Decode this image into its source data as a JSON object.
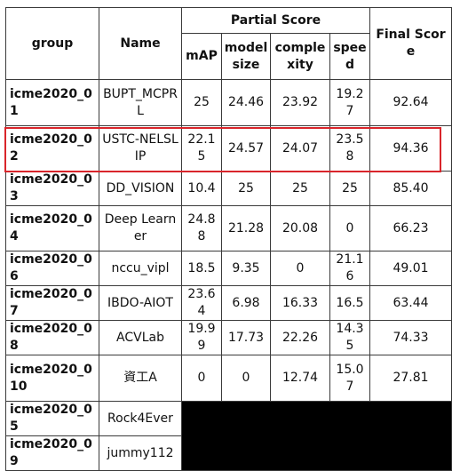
{
  "table": {
    "headers": {
      "group": "group",
      "name": "Name",
      "partial": "Partial Score",
      "final": "Final Score",
      "map": "mAP",
      "model_size": "model size",
      "complexity": "complexity",
      "speed": "speed"
    },
    "rows": [
      {
        "group": "icme2020_01",
        "name": "BUPT_MCPRL",
        "map": "25",
        "model_size": "24.46",
        "complexity": "23.92",
        "speed": "19.27",
        "final": "92.64"
      },
      {
        "group": "icme2020_02",
        "name": "USTC-NELSLIP",
        "map": "22.15",
        "model_size": "24.57",
        "complexity": "24.07",
        "speed": "23.58",
        "final": "94.36"
      },
      {
        "group": "icme2020_03",
        "name": "DD_VISION",
        "map": "10.4",
        "model_size": "25",
        "complexity": "25",
        "speed": "25",
        "final": "85.40"
      },
      {
        "group": "icme2020_04",
        "name": "Deep Learner",
        "map": "24.88",
        "model_size": "21.28",
        "complexity": "20.08",
        "speed": "0",
        "final": "66.23"
      },
      {
        "group": "icme2020_06",
        "name": "nccu_vipl",
        "map": "18.5",
        "model_size": "9.35",
        "complexity": "0",
        "speed": "21.16",
        "final": "49.01"
      },
      {
        "group": "icme2020_07",
        "name": "IBDO-AIOT",
        "map": "23.64",
        "model_size": "6.98",
        "complexity": "16.33",
        "speed": "16.5",
        "final": "63.44"
      },
      {
        "group": "icme2020_08",
        "name": "ACVLab",
        "map": "19.99",
        "model_size": "17.73",
        "complexity": "22.26",
        "speed": "14.35",
        "final": "74.33"
      },
      {
        "group": "icme2020_010",
        "name": "資工A",
        "map": "0",
        "model_size": "0",
        "complexity": "12.74",
        "speed": "15.07",
        "final": "27.81"
      }
    ],
    "blacked_rows": [
      {
        "group": "icme2020_05",
        "name": "Rock4Ever"
      },
      {
        "group": "icme2020_09",
        "name": "jummy112"
      }
    ],
    "highlight_color": "#d9252b"
  }
}
